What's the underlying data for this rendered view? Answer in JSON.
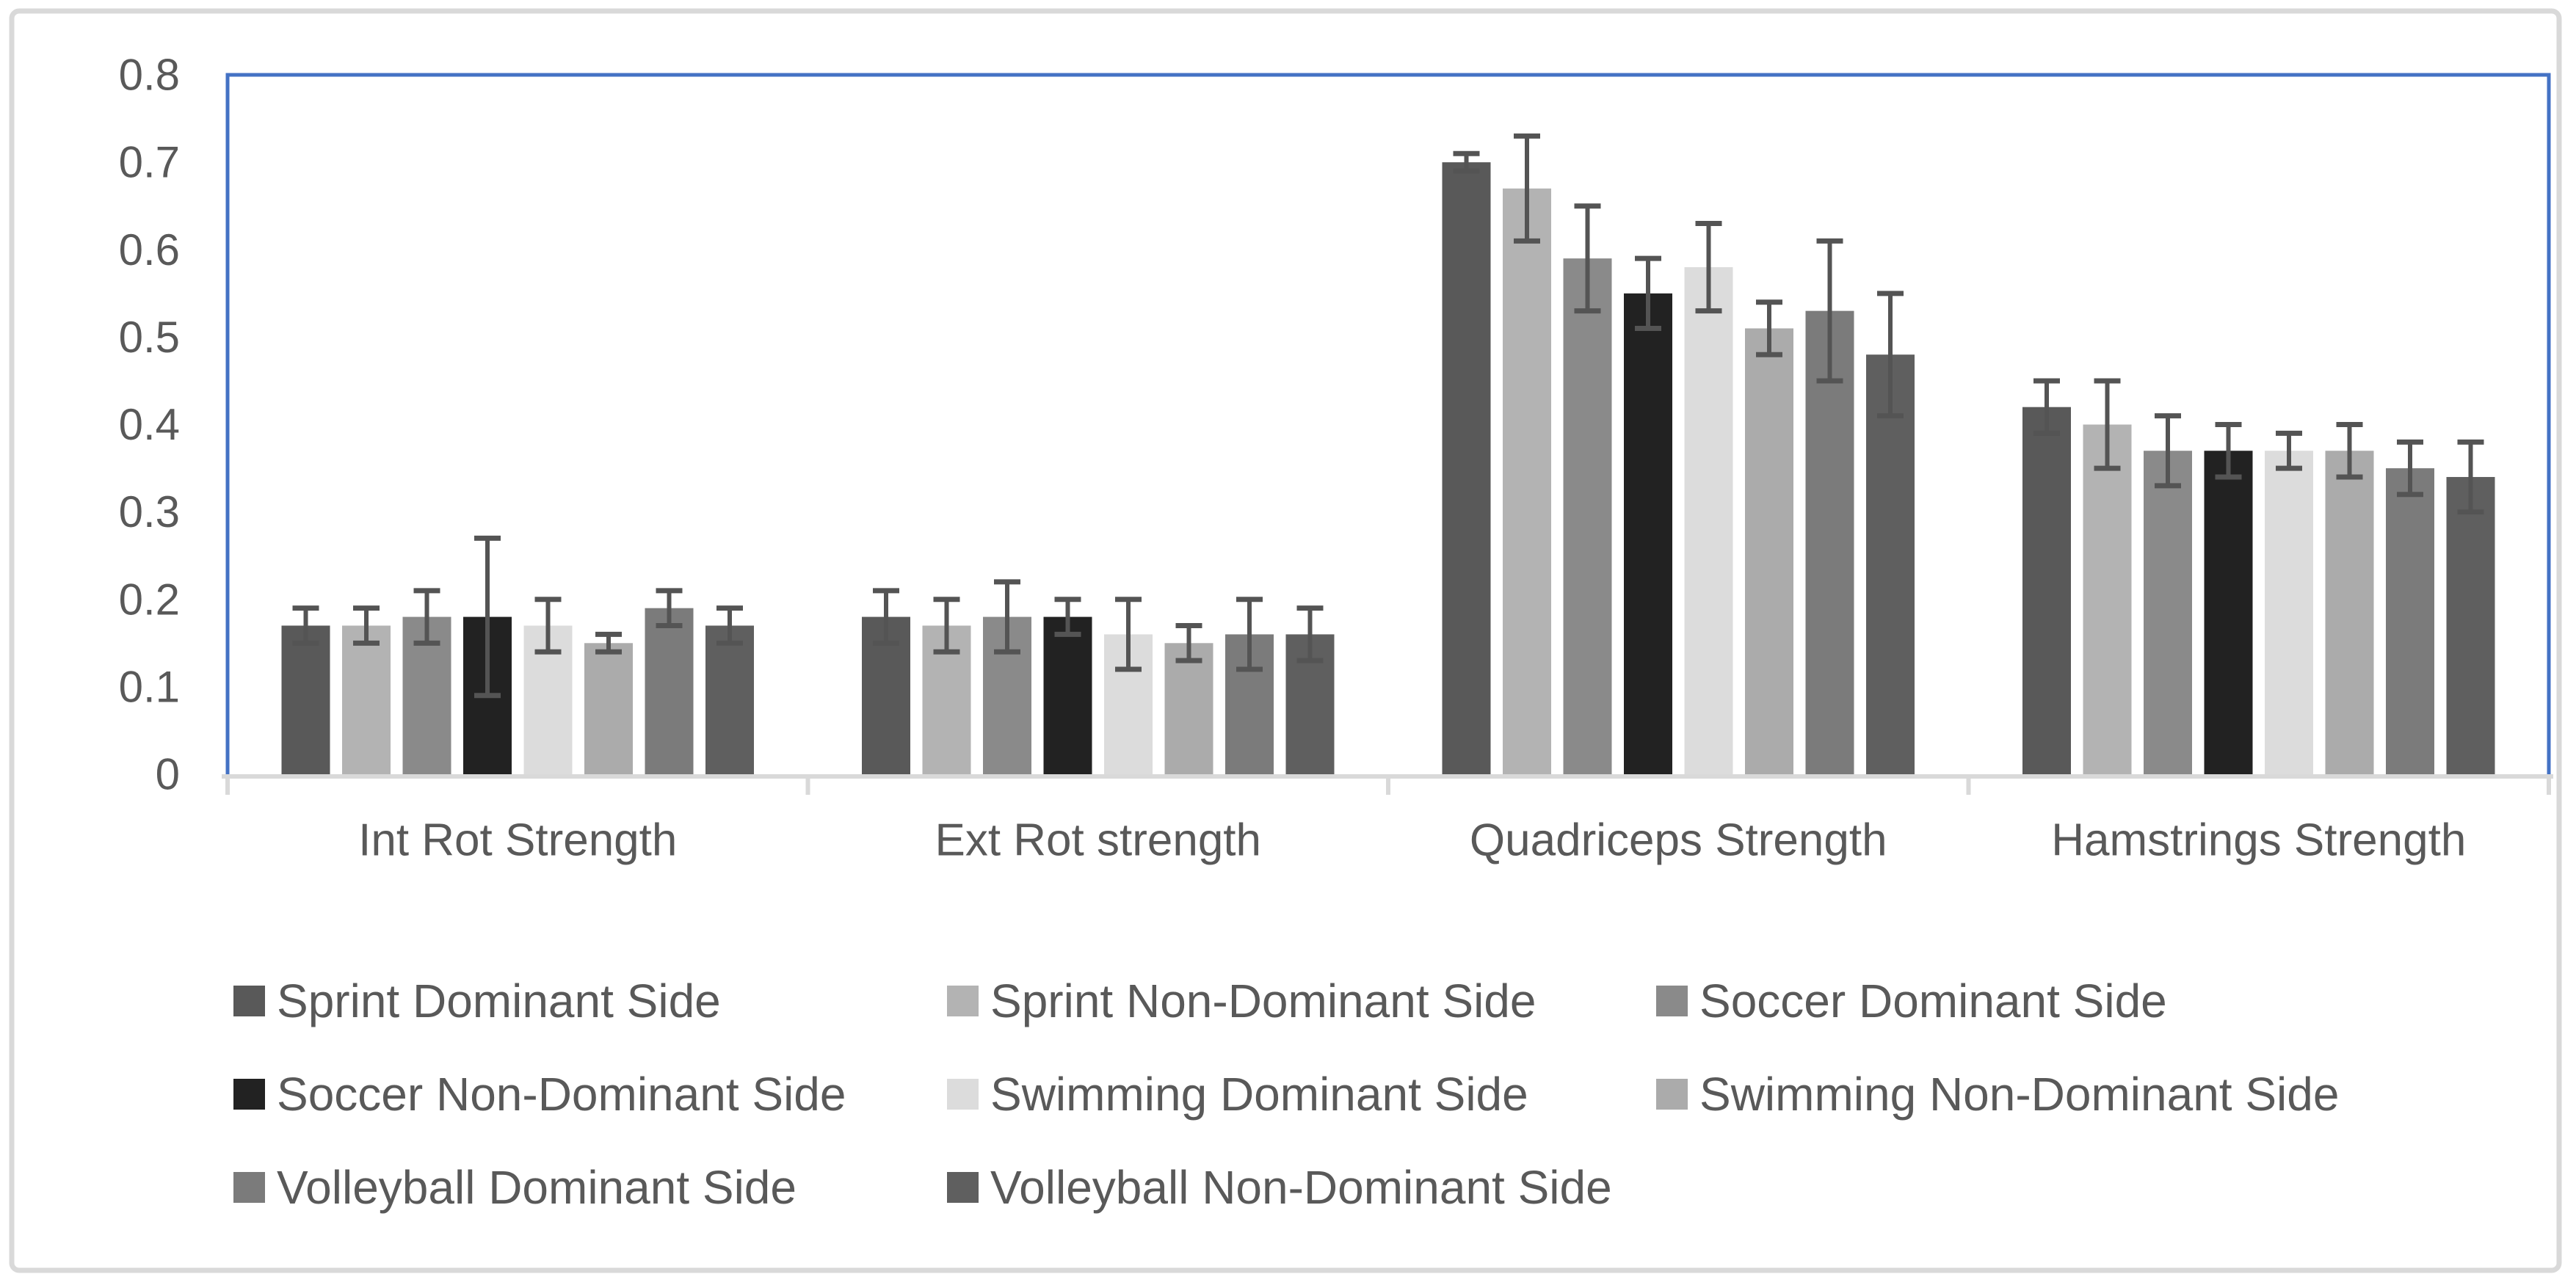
{
  "chart_data": {
    "type": "bar",
    "title": "",
    "xlabel": "",
    "ylabel": "",
    "categories": [
      "Int Rot Strength",
      "Ext Rot strength",
      "Quadriceps Strength",
      "Hamstrings Strength"
    ],
    "series": [
      {
        "name": "Sprint Dominant Side",
        "color": "#595959",
        "values": [
          0.17,
          0.18,
          0.7,
          0.42
        ],
        "errors": [
          0.02,
          0.03,
          0.01,
          0.03
        ]
      },
      {
        "name": "Sprint Non-Dominant Side",
        "color": "#b3b3b3",
        "values": [
          0.17,
          0.17,
          0.67,
          0.4
        ],
        "errors": [
          0.02,
          0.03,
          0.06,
          0.05
        ]
      },
      {
        "name": "Soccer Dominant Side",
        "color": "#8a8a8a",
        "values": [
          0.18,
          0.18,
          0.59,
          0.37
        ],
        "errors": [
          0.03,
          0.04,
          0.06,
          0.04
        ]
      },
      {
        "name": "Soccer Non-Dominant Side",
        "color": "#222222",
        "values": [
          0.18,
          0.18,
          0.55,
          0.37
        ],
        "errors": [
          0.09,
          0.02,
          0.04,
          0.03
        ]
      },
      {
        "name": "Swimming Dominant Side",
        "color": "#dcdcdc",
        "values": [
          0.17,
          0.16,
          0.58,
          0.37
        ],
        "errors": [
          0.03,
          0.04,
          0.05,
          0.02
        ]
      },
      {
        "name": "Swimming Non-Dominant Side",
        "color": "#ababab",
        "values": [
          0.15,
          0.15,
          0.51,
          0.37
        ],
        "errors": [
          0.01,
          0.02,
          0.03,
          0.03
        ]
      },
      {
        "name": "Volleyball Dominant Side",
        "color": "#7b7b7b",
        "values": [
          0.19,
          0.16,
          0.53,
          0.35
        ],
        "errors": [
          0.02,
          0.04,
          0.08,
          0.03
        ]
      },
      {
        "name": "Volleyball Non-Dominant Side",
        "color": "#5f5f5f",
        "values": [
          0.17,
          0.16,
          0.48,
          0.34
        ],
        "errors": [
          0.02,
          0.03,
          0.07,
          0.04
        ]
      }
    ],
    "ylim": [
      0,
      0.8
    ],
    "yticks": [
      "0",
      "0.1",
      "0.2",
      "0.3",
      "0.4",
      "0.5",
      "0.6",
      "0.7",
      "0.8"
    ],
    "grid": false,
    "legend_position": "bottom",
    "error_bars": true,
    "colors": {
      "plot_border": "#4472c4",
      "axis_line": "#d9d9d9",
      "outer_border": "#d9d9d9",
      "error_bar": "#545454",
      "text": "#595959",
      "background": "#ffffff"
    }
  }
}
